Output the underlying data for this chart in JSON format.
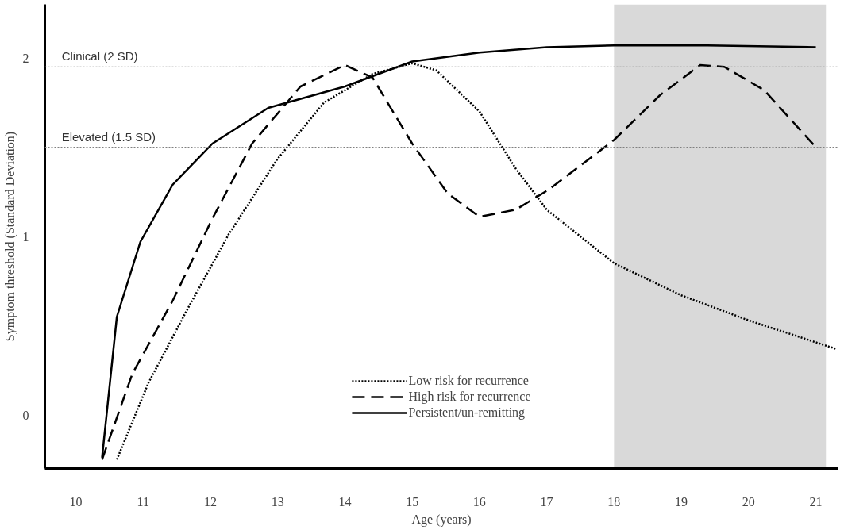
{
  "chart_data": {
    "type": "line",
    "xlabel": "Age (years)",
    "ylabel": "Symptom threshold (Standard Deviation)",
    "xlim": [
      9.54,
      21.33
    ],
    "ylim": [
      -0.3,
      2.3
    ],
    "xticks": [
      10,
      11,
      12,
      13,
      14,
      15,
      16,
      17,
      18,
      19,
      20,
      21
    ],
    "yticks": [
      0,
      1,
      2
    ],
    "grid": false,
    "legend": "bottom",
    "marker": "none",
    "ref_lines": [
      {
        "axis": "y",
        "value": 1.95,
        "label": "Clinical  (2 SD)",
        "color": "#7f7f7f",
        "line_style": "dotted"
      },
      {
        "axis": "y",
        "value": 1.5,
        "label": "Elevated  (1.5 SD)",
        "color": "#7f7f7f",
        "line_style": "dotted"
      }
    ],
    "bands": [
      {
        "axis": "x",
        "from": 18,
        "to": 21.15,
        "label": null,
        "color": "#d9d9d9"
      }
    ],
    "series": [
      {
        "name": "Low risk for recurrence",
        "color": "#000000",
        "line_style": "dotted",
        "x": [
          10.61,
          11.08,
          11.67,
          12.27,
          12.99,
          13.69,
          14.41,
          15,
          15.36,
          16,
          16.54,
          17,
          18,
          19,
          20,
          21.3
        ],
        "values": [
          -0.25,
          0.18,
          0.6,
          1.01,
          1.43,
          1.75,
          1.91,
          1.97,
          1.93,
          1.7,
          1.38,
          1.15,
          0.85,
          0.67,
          0.53,
          0.37
        ]
      },
      {
        "name": "High risk for recurrence",
        "color": "#000000",
        "line_style": "dashed",
        "x": [
          10.39,
          10.84,
          11.44,
          12.03,
          12.62,
          13.34,
          14.0,
          14.41,
          15,
          15.53,
          16,
          16.54,
          17.02,
          18,
          18.68,
          19.28,
          19.64,
          20.23,
          21
        ],
        "values": [
          -0.25,
          0.23,
          0.64,
          1.1,
          1.52,
          1.84,
          1.96,
          1.89,
          1.52,
          1.24,
          1.11,
          1.15,
          1.26,
          1.54,
          1.79,
          1.96,
          1.95,
          1.82,
          1.5
        ]
      },
      {
        "name": "Persistent/un-remitting",
        "color": "#000000",
        "line_style": "solid",
        "x": [
          10.39,
          10.61,
          10.96,
          11.44,
          12.03,
          12.86,
          14.0,
          15,
          16,
          17,
          18,
          19.39,
          21
        ],
        "values": [
          -0.24,
          0.55,
          0.97,
          1.29,
          1.52,
          1.72,
          1.84,
          1.98,
          2.03,
          2.06,
          2.07,
          2.07,
          2.06
        ]
      }
    ]
  }
}
